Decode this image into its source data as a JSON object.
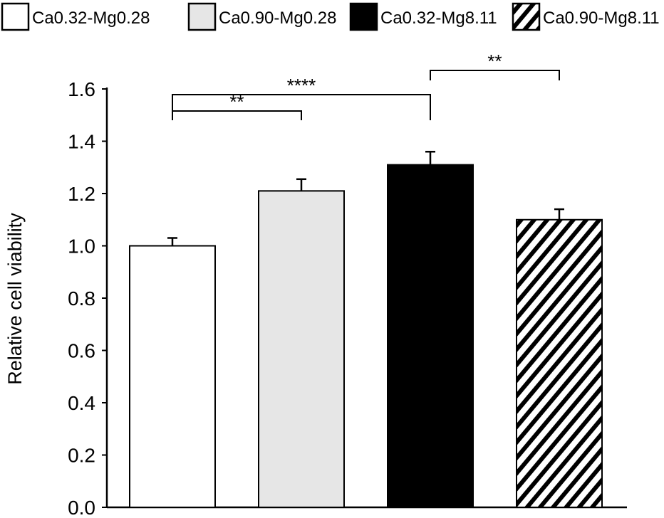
{
  "chart_data": {
    "type": "bar",
    "title": "",
    "xlabel": "",
    "ylabel": "Relative cell viability",
    "ylim": [
      0,
      1.6
    ],
    "yticks": [
      "0.0",
      "0.2",
      "0.4",
      "0.6",
      "0.8",
      "1.0",
      "1.2",
      "1.4",
      "1.6"
    ],
    "grid": false,
    "legend_position": "top",
    "categories": [
      "Ca0.32-Mg0.28",
      "Ca0.90-Mg0.28",
      "Ca0.32-Mg8.11",
      "Ca0.90-Mg8.11"
    ],
    "values": [
      1.0,
      1.21,
      1.31,
      1.1
    ],
    "errors": [
      0.03,
      0.045,
      0.05,
      0.04
    ],
    "fills": [
      {
        "color": "#ffffff",
        "pattern": "solid"
      },
      {
        "color": "#e6e6e6",
        "pattern": "solid"
      },
      {
        "color": "#000000",
        "pattern": "solid"
      },
      {
        "color": "#ffffff",
        "pattern": "diagonal-stripes"
      }
    ],
    "significance": [
      {
        "from": 0,
        "to": 1,
        "label": "**"
      },
      {
        "from": 0,
        "to": 2,
        "label": "****"
      },
      {
        "from": 2,
        "to": 3,
        "label": "**"
      }
    ]
  }
}
